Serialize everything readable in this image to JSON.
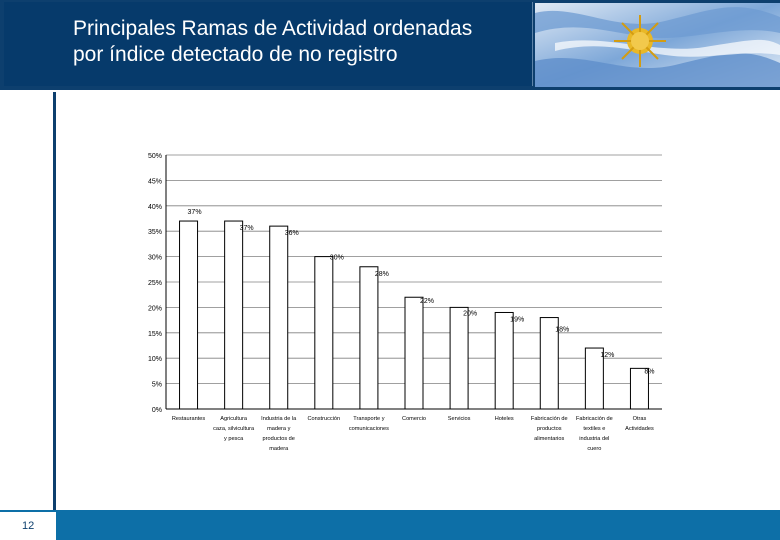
{
  "slide": {
    "title_line1": "Principales Ramas de Actividad ordenadas",
    "title_line2": "por índice detectado de no registro",
    "page_number": "12"
  },
  "colors": {
    "header_bg": "#0d3f6e",
    "footer_bg": "#0d6fa7",
    "bar_fill": "#ffffff",
    "bar_stroke": "#000000"
  },
  "chart_data": {
    "type": "bar",
    "title": "",
    "xlabel": "",
    "ylabel": "",
    "ylim": [
      0,
      50
    ],
    "y_ticks": [
      "0%",
      "5%",
      "10%",
      "15%",
      "20%",
      "25%",
      "30%",
      "35%",
      "40%",
      "45%",
      "50%"
    ],
    "categories": [
      [
        "Restaurantes"
      ],
      [
        "Agricultura",
        "caza, silvicultura",
        "y pesca"
      ],
      [
        "Industria de la",
        "madera y",
        "productos de",
        "madera"
      ],
      [
        "Construcción"
      ],
      [
        "Transporte y",
        "comunicaciones"
      ],
      [
        "Comercio"
      ],
      [
        "Servicios"
      ],
      [
        "Hoteles"
      ],
      [
        "Fabricación de",
        "productos",
        "alimentarios"
      ],
      [
        "Fabricación de",
        "textiles e",
        "industria del",
        "cuero"
      ],
      [
        "Otras",
        "Actividades"
      ]
    ],
    "values": [
      37,
      37,
      36,
      30,
      28,
      22,
      20,
      19,
      18,
      12,
      8
    ],
    "data_labels": [
      "37%",
      "37%",
      "36%",
      "30%",
      "28%",
      "22%",
      "20%",
      "19%",
      "18%",
      "12%",
      "8%"
    ]
  }
}
